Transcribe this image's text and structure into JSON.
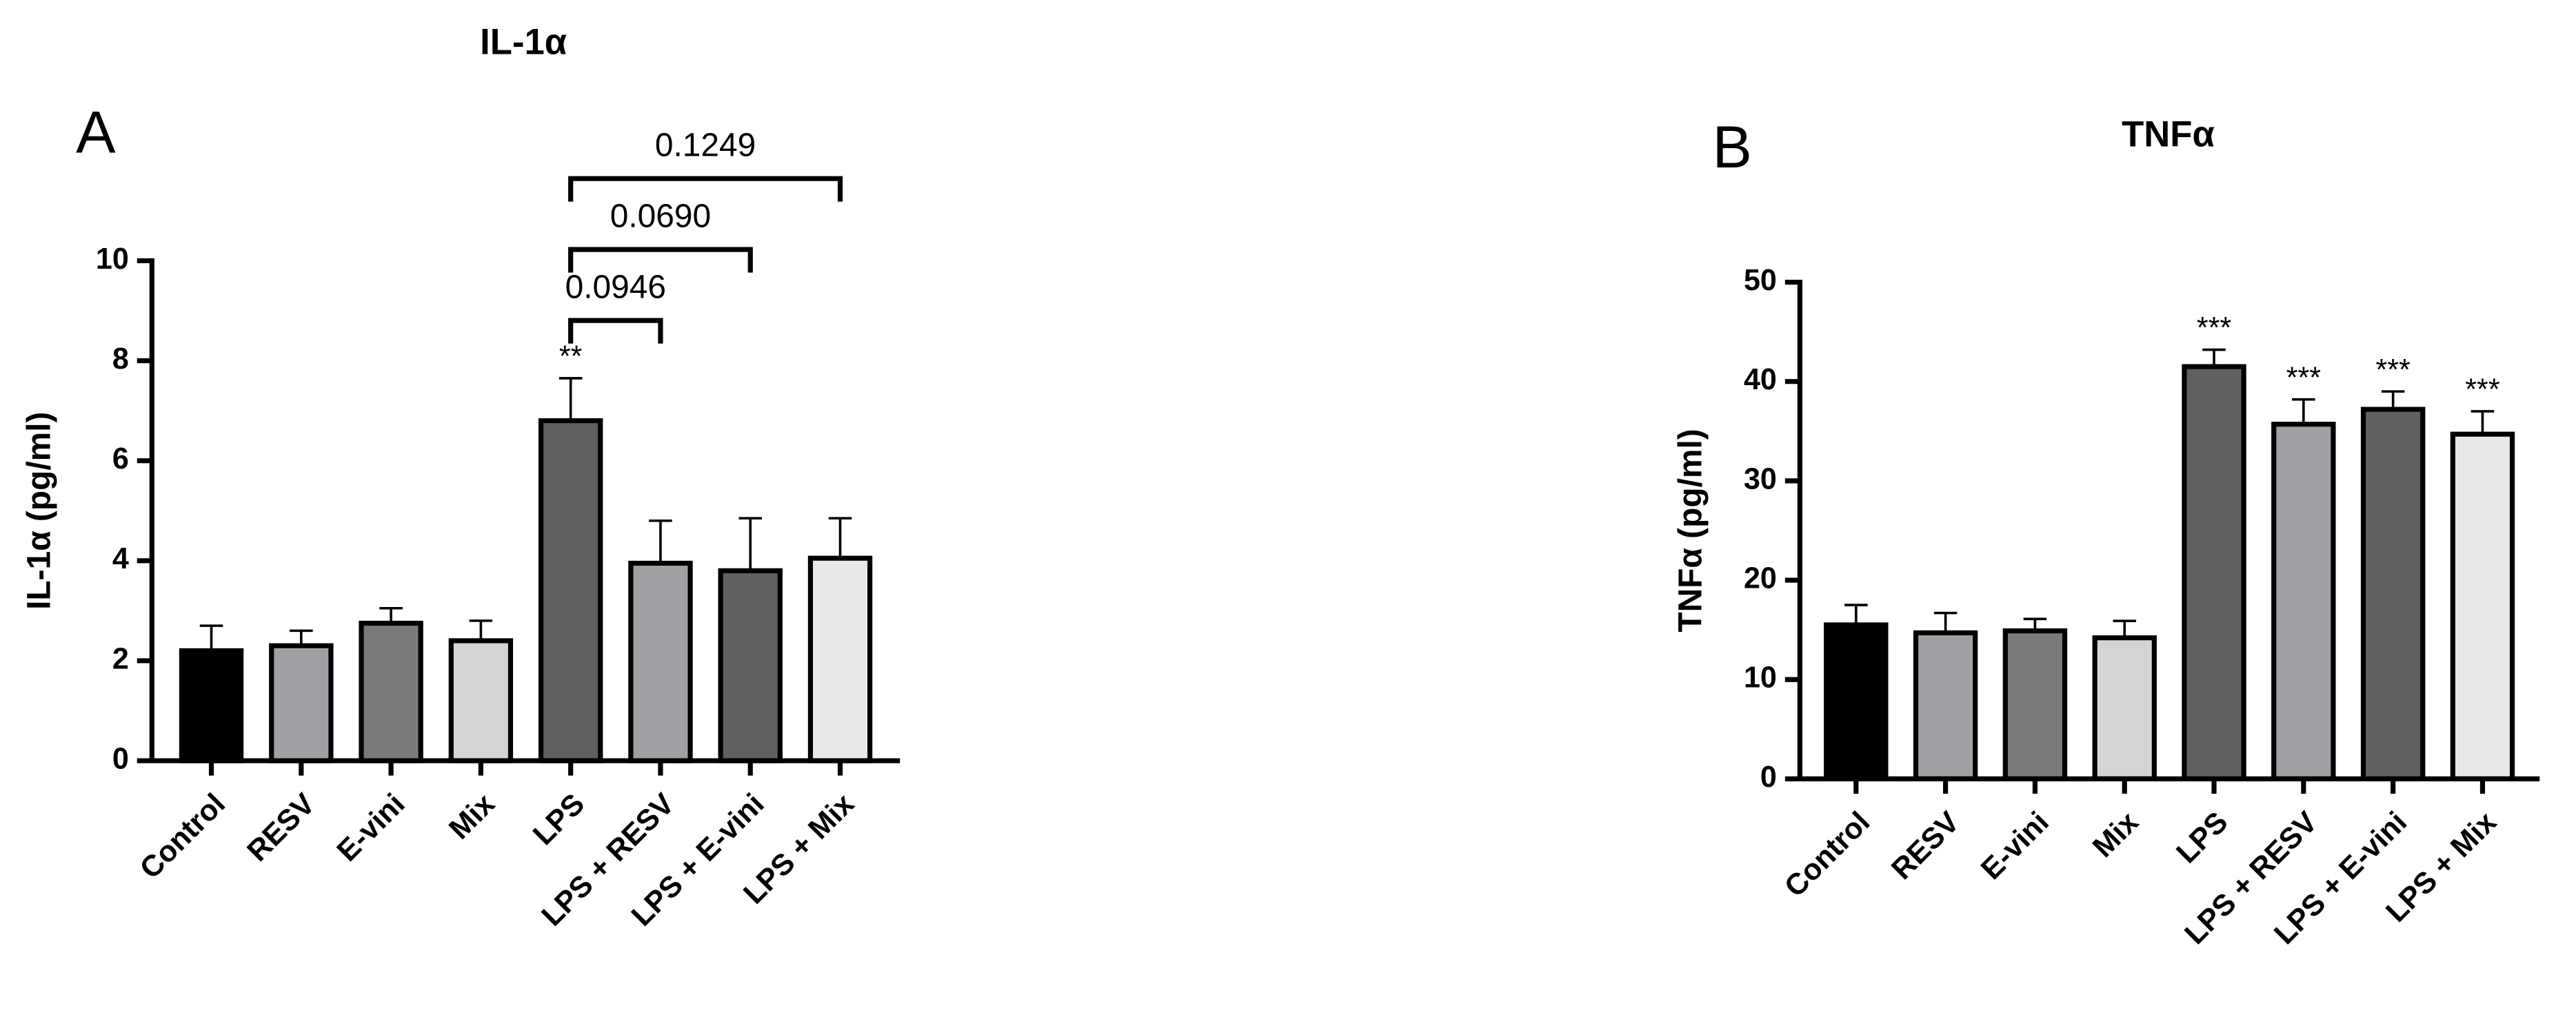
{
  "chart_data": [
    {
      "type": "bar",
      "title": "IL-1α",
      "panel_label": "A",
      "y_label": "IL-1α (pg/ml)",
      "categories": [
        "Control",
        "RESV",
        "E-vini",
        "Mix",
        "LPS",
        "LPS + RESV",
        "LPS + E-vini",
        "LPS + Mix"
      ],
      "values": [
        2.2,
        2.3,
        2.75,
        2.4,
        6.8,
        3.95,
        3.8,
        4.05
      ],
      "errors": [
        0.5,
        0.3,
        0.3,
        0.4,
        0.85,
        0.85,
        1.05,
        0.8
      ],
      "colors": [
        "#000000",
        "#a0a0a4",
        "#7a7a7a",
        "#d4d4d4",
        "#606060",
        "#a0a0a4",
        "#606060",
        "#e8e8e8"
      ],
      "ylim": [
        0,
        10
      ],
      "yticks": [
        0,
        2,
        4,
        6,
        8,
        10
      ],
      "significance": [
        null,
        null,
        null,
        null,
        "**",
        null,
        null,
        null
      ],
      "comparisons": [
        {
          "from": "LPS",
          "to": "LPS + RESV",
          "label": "0.0946"
        },
        {
          "from": "LPS",
          "to": "LPS + E-vini",
          "label": "0.0690"
        },
        {
          "from": "LPS",
          "to": "LPS + Mix",
          "label": "0.1249"
        }
      ]
    },
    {
      "type": "bar",
      "title": "TNFα",
      "panel_label": "B",
      "y_label": "TNFα (pg/ml)",
      "categories": [
        "Control",
        "RESV",
        "E-vini",
        "Mix",
        "LPS",
        "LPS + RESV",
        "LPS + E-vini",
        "LPS + Mix"
      ],
      "values": [
        15.5,
        14.7,
        14.9,
        14.2,
        41.5,
        35.7,
        37.2,
        34.7
      ],
      "errors": [
        2.0,
        2.0,
        1.2,
        1.7,
        1.7,
        2.5,
        1.8,
        2.3
      ],
      "colors": [
        "#000000",
        "#a0a0a4",
        "#7a7a7a",
        "#d4d4d4",
        "#606060",
        "#a0a0a4",
        "#606060",
        "#e8e8e8"
      ],
      "ylim": [
        0,
        50
      ],
      "yticks": [
        0,
        10,
        20,
        30,
        40,
        50
      ],
      "significance": [
        null,
        null,
        null,
        null,
        "***",
        "***",
        "***",
        "***"
      ],
      "comparisons": []
    }
  ]
}
